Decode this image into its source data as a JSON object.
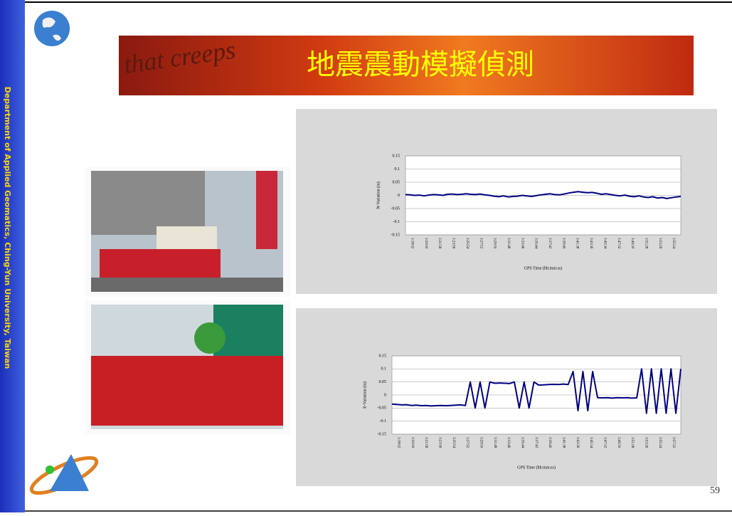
{
  "sidebar": "Department of Applied Geomatics, Ching-Yun University, Taiwan",
  "banner": {
    "background_text": "that creeps",
    "title": "地震震動模擬偵測"
  },
  "page_number": "59",
  "chart_data": [
    {
      "type": "line",
      "y_label": "N-Variation (m)",
      "x_label": "GPS Time (hh:mm:ss)",
      "ylim": [
        -0.15,
        0.15
      ],
      "yticks": [
        0.15,
        0.1,
        0.05,
        0,
        -0.05,
        -0.1,
        -0.15
      ],
      "grid": true,
      "xticks": [
        "3:18:02",
        "3:20:00",
        "3:21:58",
        "3:23:56",
        "3:25:54",
        "3:27:52",
        "3:29:50",
        "3:31:48",
        "3:33:46",
        "3:35:44",
        "3:37:42",
        "3:39:40",
        "3:41:38",
        "3:43:36",
        "3:45:34",
        "3:47:32",
        "3:49:30",
        "3:51:28",
        "3:53:26",
        "3:55:24"
      ],
      "series": [
        {
          "color": "#000080",
          "values": [
            0.003,
            0.002,
            0,
            0.001,
            -0.002,
            0.001,
            0.003,
            0.002,
            0,
            0.004,
            0.005,
            0.003,
            0.004,
            0.006,
            0.004,
            0.003,
            0.005,
            0.002,
            0,
            -0.003,
            -0.005,
            -0.002,
            -0.006,
            -0.004,
            -0.003,
            0,
            -0.002,
            -0.004,
            -0.001,
            0.002,
            0.004,
            0.006,
            0.003,
            0.002,
            0.005,
            0.009,
            0.012,
            0.014,
            0.012,
            0.01,
            0.011,
            0.008,
            0.004,
            0.006,
            0.003,
            0,
            -0.002,
            0.001,
            -0.003,
            -0.005,
            -0.002,
            -0.006,
            -0.008,
            -0.005,
            -0.01,
            -0.008,
            -0.012,
            -0.009,
            -0.006,
            -0.004
          ]
        }
      ]
    },
    {
      "type": "line",
      "y_label": "E-Variation (m)",
      "x_label": "GPS Time (hh:mm:ss)",
      "ylim": [
        -0.15,
        0.15
      ],
      "yticks": [
        0.15,
        0.1,
        0.05,
        0,
        -0.05,
        -0.1,
        -0.15
      ],
      "grid": true,
      "xticks": [
        "3:18:02",
        "3:20:00",
        "3:21:58",
        "3:23:56",
        "3:25:54",
        "3:27:52",
        "3:29:50",
        "3:31:48",
        "3:33:46",
        "3:35:44",
        "3:37:42",
        "3:39:40",
        "3:41:38",
        "3:43:36",
        "3:45:34",
        "3:47:32",
        "3:49:30",
        "3:51:28",
        "3:53:26",
        "3:55:24",
        "3:57:22"
      ],
      "series": [
        {
          "color": "#000080",
          "values": [
            -0.035,
            -0.036,
            -0.038,
            -0.037,
            -0.04,
            -0.039,
            -0.041,
            -0.04,
            -0.042,
            -0.041,
            -0.04,
            -0.041,
            -0.04,
            -0.039,
            -0.038,
            -0.04,
            0.05,
            -0.05,
            0.05,
            -0.05,
            0.05,
            0.045,
            0.046,
            0.045,
            0.044,
            0.05,
            -0.05,
            0.05,
            -0.05,
            0.05,
            0.038,
            0.039,
            0.04,
            0.041,
            0.04,
            0.042,
            0.04,
            0.09,
            -0.06,
            0.09,
            -0.06,
            0.09,
            -0.01,
            -0.011,
            -0.01,
            -0.012,
            -0.01,
            -0.011,
            -0.01,
            -0.012,
            -0.011,
            0.1,
            -0.07,
            0.1,
            -0.07,
            0.1,
            -0.07,
            0.1,
            -0.07,
            0.1
          ]
        }
      ]
    }
  ]
}
